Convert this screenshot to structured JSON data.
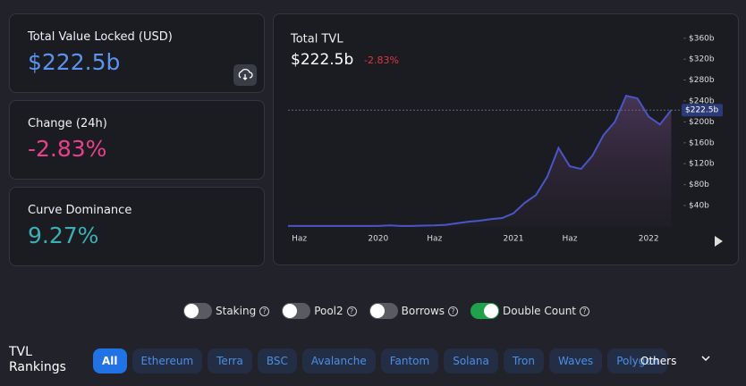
{
  "cards": [
    {
      "label": "Total Value Locked (USD)",
      "value": "$222.5b"
    },
    {
      "label": "Change (24h)",
      "value": "-2.83%"
    },
    {
      "label": "Curve Dominance",
      "value": "9.27%"
    }
  ],
  "chart_data": {
    "type": "area",
    "title": "Total TVL",
    "headline": "$222.5b",
    "change": "-2.83%",
    "categories": [
      null,
      "Haz",
      null,
      null,
      null,
      null,
      null,
      null,
      "2020",
      null,
      null,
      null,
      null,
      "Haz",
      null,
      null,
      null,
      null,
      null,
      null,
      "2021",
      null,
      null,
      null,
      null,
      "Haz",
      null,
      null,
      null,
      null,
      null,
      null,
      "2022",
      null,
      null
    ],
    "values": [
      1,
      1,
      1,
      1,
      1,
      1,
      1,
      1,
      1,
      2,
      1,
      1,
      1.5,
      2,
      3,
      6,
      9,
      11,
      14,
      16,
      25,
      45,
      60,
      95,
      150,
      115,
      110,
      135,
      175,
      200,
      250,
      245,
      210,
      195,
      222.5
    ],
    "color": "#4a55c8",
    "current_value": 222.5,
    "current_label": "$222.5b",
    "ylim": [
      0,
      360
    ],
    "yticks": [
      {
        "value": 40,
        "label": "$40b"
      },
      {
        "value": 80,
        "label": "$80b"
      },
      {
        "value": 120,
        "label": "$120b"
      },
      {
        "value": 160,
        "label": "$160b"
      },
      {
        "value": 200,
        "label": "$200b"
      },
      {
        "value": 240,
        "label": "$240b"
      },
      {
        "value": 280,
        "label": "$280b"
      },
      {
        "value": 320,
        "label": "$320b"
      },
      {
        "value": 360,
        "label": "$360b"
      }
    ]
  },
  "toggles": [
    {
      "label": "Staking",
      "on": false
    },
    {
      "label": "Pool2",
      "on": false
    },
    {
      "label": "Borrows",
      "on": false
    },
    {
      "label": "Double Count",
      "on": true
    }
  ],
  "rankings": {
    "title": "TVL Rankings",
    "tabs": [
      "All",
      "Ethereum",
      "Terra",
      "BSC",
      "Avalanche",
      "Fantom",
      "Solana",
      "Tron",
      "Waves",
      "Polygon"
    ],
    "active": 0,
    "more": "Others"
  }
}
